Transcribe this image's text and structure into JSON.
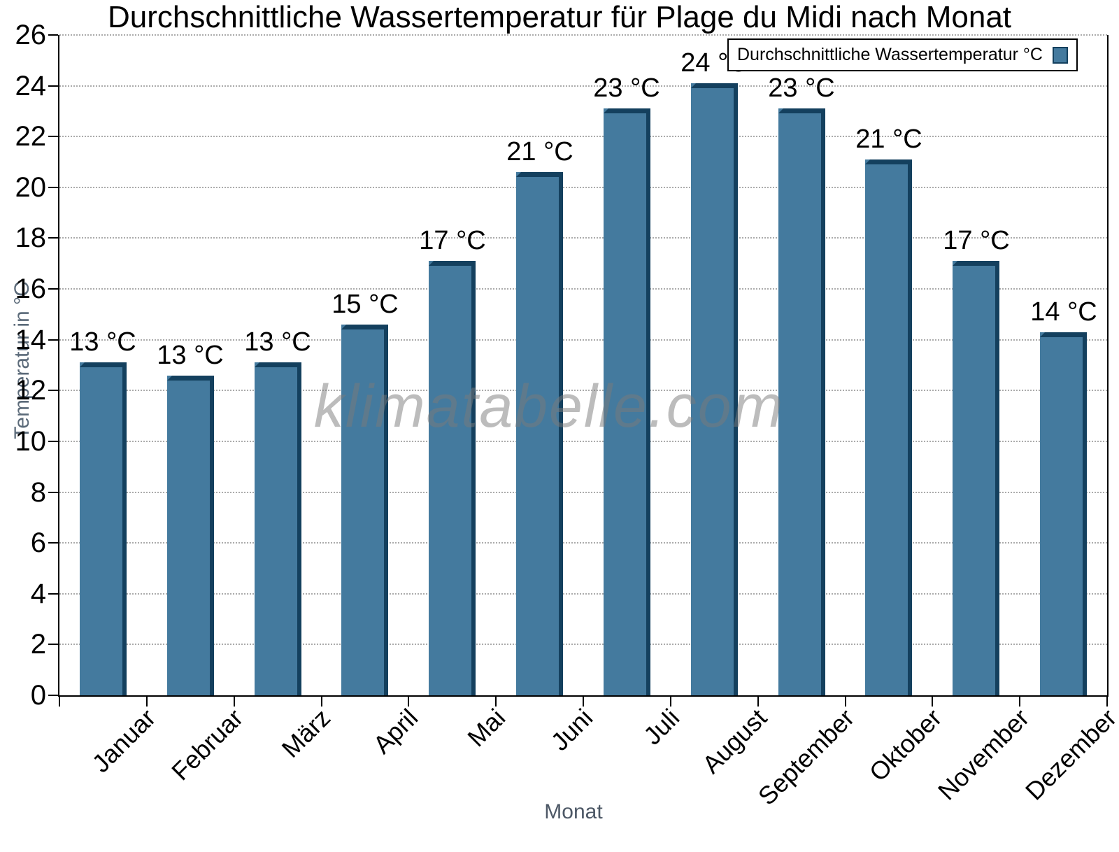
{
  "chart_data": {
    "type": "bar",
    "title": "Durchschnittliche Wassertemperatur für Plage du Midi nach Monat",
    "xlabel": "Monat",
    "ylabel": "Temperatur in °C",
    "ylim": [
      0,
      26
    ],
    "ytick_step": 2,
    "ytick_labels": [
      "0",
      "2",
      "4",
      "6",
      "8",
      "10",
      "12",
      "14",
      "16",
      "18",
      "20",
      "22",
      "24",
      "26"
    ],
    "grid": "horizontal dotted lines every 2 units",
    "legend_position": "top-right",
    "legend_label": "Durchschnittliche Wassertemperatur °C",
    "watermark": "klimatabelle.com",
    "categories": [
      "Januar",
      "Februar",
      "März",
      "April",
      "Mai",
      "Juni",
      "Juli",
      "August",
      "September",
      "Oktober",
      "November",
      "Dezember"
    ],
    "values": [
      13.1,
      12.6,
      13.1,
      14.6,
      17.1,
      20.6,
      23.1,
      24.1,
      23.1,
      21.1,
      17.1,
      14.3
    ],
    "value_labels": [
      "13 °C",
      "13 °C",
      "13 °C",
      "15 °C",
      "17 °C",
      "21 °C",
      "23 °C",
      "24 °C",
      "23 °C",
      "21 °C",
      "17 °C",
      "14 °C"
    ],
    "bar_color": "#447A9E",
    "bar_edge_color": "#14405E",
    "axis_color": "#000000",
    "gridline_color": "#ababab"
  }
}
